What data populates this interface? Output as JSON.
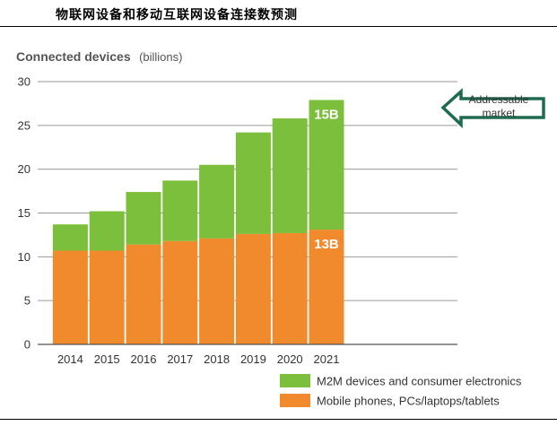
{
  "page": {
    "header_title": "物联网设备和移动互联网设备连接数预测"
  },
  "chart_data": {
    "type": "bar",
    "stacked": true,
    "title": "Connected devices",
    "unit": "(billions)",
    "categories": [
      "2014",
      "2015",
      "2016",
      "2017",
      "2018",
      "2019",
      "2020",
      "2021"
    ],
    "series": [
      {
        "name": "Mobile phones, PCs/laptops/tablets",
        "color": "#f08a2c",
        "values": [
          10.7,
          10.7,
          11.4,
          11.8,
          12.1,
          12.6,
          12.7,
          13.1
        ]
      },
      {
        "name": "M2M devices and consumer electronics",
        "color": "#7cbf3c",
        "values": [
          3.0,
          4.5,
          6.0,
          6.9,
          8.4,
          11.6,
          13.1,
          14.8
        ]
      }
    ],
    "bar_labels": [
      {
        "category": "2021",
        "series": "M2M devices and consumer electronics",
        "text": "15B"
      },
      {
        "category": "2021",
        "series": "Mobile phones, PCs/laptops/tablets",
        "text": "13B"
      }
    ],
    "annotation": {
      "line1": "Addressable",
      "line2": "market",
      "color": "#1e6b4f"
    },
    "ylim": [
      0,
      30
    ],
    "yticks": [
      0,
      5,
      10,
      15,
      20,
      25,
      30
    ],
    "grid": true,
    "legend_position": "bottom-right",
    "legend_order": [
      "M2M devices and consumer electronics",
      "Mobile phones, PCs/laptops/tablets"
    ]
  }
}
